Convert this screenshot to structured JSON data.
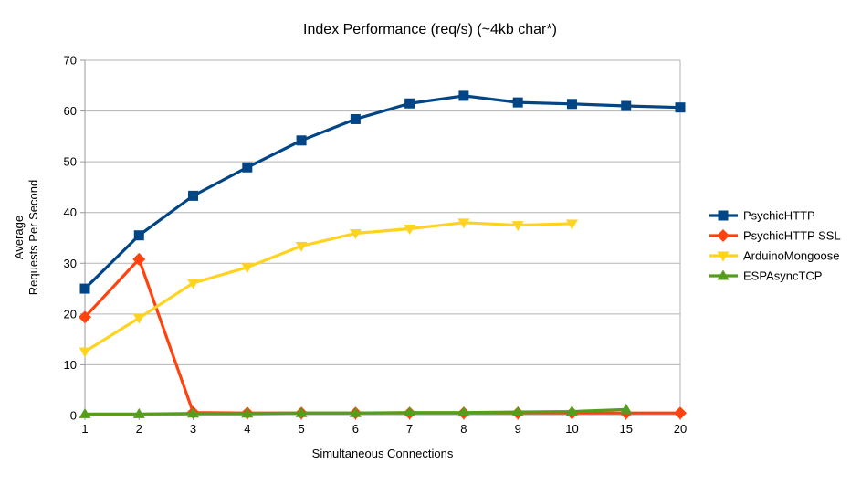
{
  "title": "Index Performance (req/s) (~4kb char*)",
  "colors": {
    "background": "#ffffff",
    "gridline": "#b3b3b3",
    "axis": "#999999",
    "text": "#000000",
    "series_blue": "#004586",
    "series_red": "#ff420e",
    "series_yellow": "#ffd320",
    "series_green": "#579d1c"
  },
  "chart_data": {
    "type": "line",
    "title": "Index Performance (req/s) (~4kb char*)",
    "xlabel": "Simultaneous Connections",
    "ylabel": "Average Requests Per Second",
    "ylabel_lines": [
      "Average",
      "Requests Per Second"
    ],
    "categories": [
      "1",
      "2",
      "3",
      "4",
      "5",
      "6",
      "7",
      "8",
      "9",
      "10",
      "15",
      "20"
    ],
    "ylim": [
      0,
      70
    ],
    "yticks": [
      0,
      10,
      20,
      30,
      40,
      50,
      60,
      70
    ],
    "grid": "horizontal",
    "legend_position": "right",
    "series": [
      {
        "name": "PsychicHTTP",
        "color": "#004586",
        "marker": "square",
        "values": [
          25.0,
          35.5,
          43.3,
          48.9,
          54.2,
          58.4,
          61.5,
          63.0,
          61.7,
          61.4,
          61.0,
          60.7
        ]
      },
      {
        "name": "PsychicHTTP SSL",
        "color": "#ff420e",
        "marker": "diamond",
        "values": [
          19.4,
          30.8,
          0.6,
          0.5,
          0.5,
          0.5,
          0.5,
          0.5,
          0.5,
          0.5,
          0.5,
          0.5
        ]
      },
      {
        "name": "ArduinoMongoose",
        "color": "#ffd320",
        "marker": "triangle-down",
        "values": [
          12.6,
          19.2,
          26.1,
          29.2,
          33.4,
          35.9,
          36.8,
          38.0,
          37.5,
          37.8,
          null,
          null
        ]
      },
      {
        "name": "ESPAsyncTCP",
        "color": "#579d1c",
        "marker": "triangle-up",
        "values": [
          0.3,
          0.3,
          0.4,
          0.4,
          0.5,
          0.5,
          0.6,
          0.6,
          0.7,
          0.8,
          1.2,
          null
        ]
      }
    ]
  }
}
